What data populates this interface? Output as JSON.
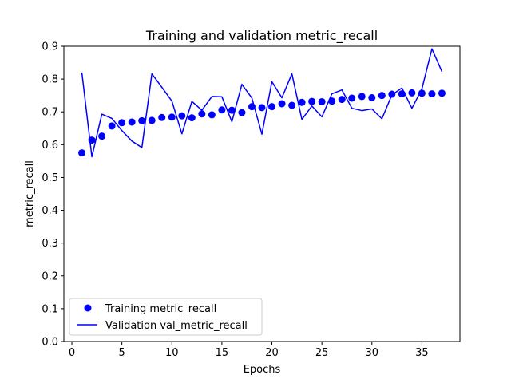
{
  "chart_data": {
    "type": "line",
    "title": "Training and validation metric_recall",
    "xlabel": "Epochs",
    "ylabel": "metric_recall",
    "xlim": [
      -0.8,
      38.8
    ],
    "ylim": [
      0.0,
      0.9
    ],
    "xticks": [
      0,
      5,
      10,
      15,
      20,
      25,
      30,
      35
    ],
    "yticks": [
      0.0,
      0.1,
      0.2,
      0.3,
      0.4,
      0.5,
      0.6,
      0.7,
      0.8,
      0.9
    ],
    "grid": false,
    "legend_position": "lower-left",
    "x": [
      1,
      2,
      3,
      4,
      5,
      6,
      7,
      8,
      9,
      10,
      11,
      12,
      13,
      14,
      15,
      16,
      17,
      18,
      19,
      20,
      21,
      22,
      23,
      24,
      25,
      26,
      27,
      28,
      29,
      30,
      31,
      32,
      33,
      34,
      35,
      36,
      37
    ],
    "series": [
      {
        "name": "Training metric_recall",
        "style": "dots",
        "color": "#0000ff",
        "values": [
          0.575,
          0.614,
          0.626,
          0.657,
          0.667,
          0.669,
          0.673,
          0.674,
          0.683,
          0.684,
          0.688,
          0.682,
          0.694,
          0.691,
          0.706,
          0.705,
          0.698,
          0.716,
          0.713,
          0.716,
          0.725,
          0.72,
          0.729,
          0.732,
          0.731,
          0.733,
          0.738,
          0.742,
          0.747,
          0.743,
          0.75,
          0.754,
          0.755,
          0.758,
          0.757,
          0.755,
          0.757
        ]
      },
      {
        "name": "Validation val_metric_recall",
        "style": "line",
        "color": "#0000ff",
        "values": [
          0.82,
          0.563,
          0.693,
          0.68,
          0.643,
          0.611,
          0.591,
          0.816,
          0.775,
          0.733,
          0.633,
          0.732,
          0.705,
          0.747,
          0.746,
          0.67,
          0.784,
          0.742,
          0.632,
          0.792,
          0.743,
          0.816,
          0.677,
          0.718,
          0.685,
          0.755,
          0.767,
          0.711,
          0.704,
          0.709,
          0.679,
          0.752,
          0.773,
          0.711,
          0.77,
          0.892,
          0.823
        ]
      }
    ]
  }
}
